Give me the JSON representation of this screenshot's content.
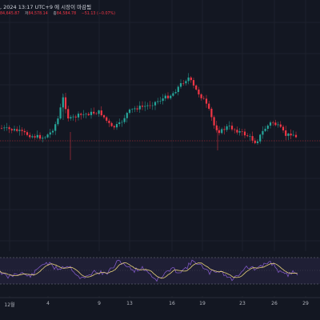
{
  "header": {
    "info_text": ", 2024 13:17 UTC+9 에 시장이 마감됨",
    "ohlc": {
      "open_value": "84,645.87",
      "high_label": "저",
      "high_value": "84,578.14",
      "close_label": "종",
      "close_value": "84,584.78",
      "change_text": "−51.13 (−0.07%)"
    }
  },
  "x_axis": {
    "labels": [
      "12월",
      "4",
      "9",
      "13",
      "16",
      "19",
      "23",
      "26",
      "29"
    ]
  },
  "colors": {
    "background": "#131722",
    "up": "#26a69a",
    "down": "#f23645",
    "rsi_line": "#7e57c2",
    "rsi_ma": "#e8d27a",
    "rsi_band": "#7e57c2"
  }
}
